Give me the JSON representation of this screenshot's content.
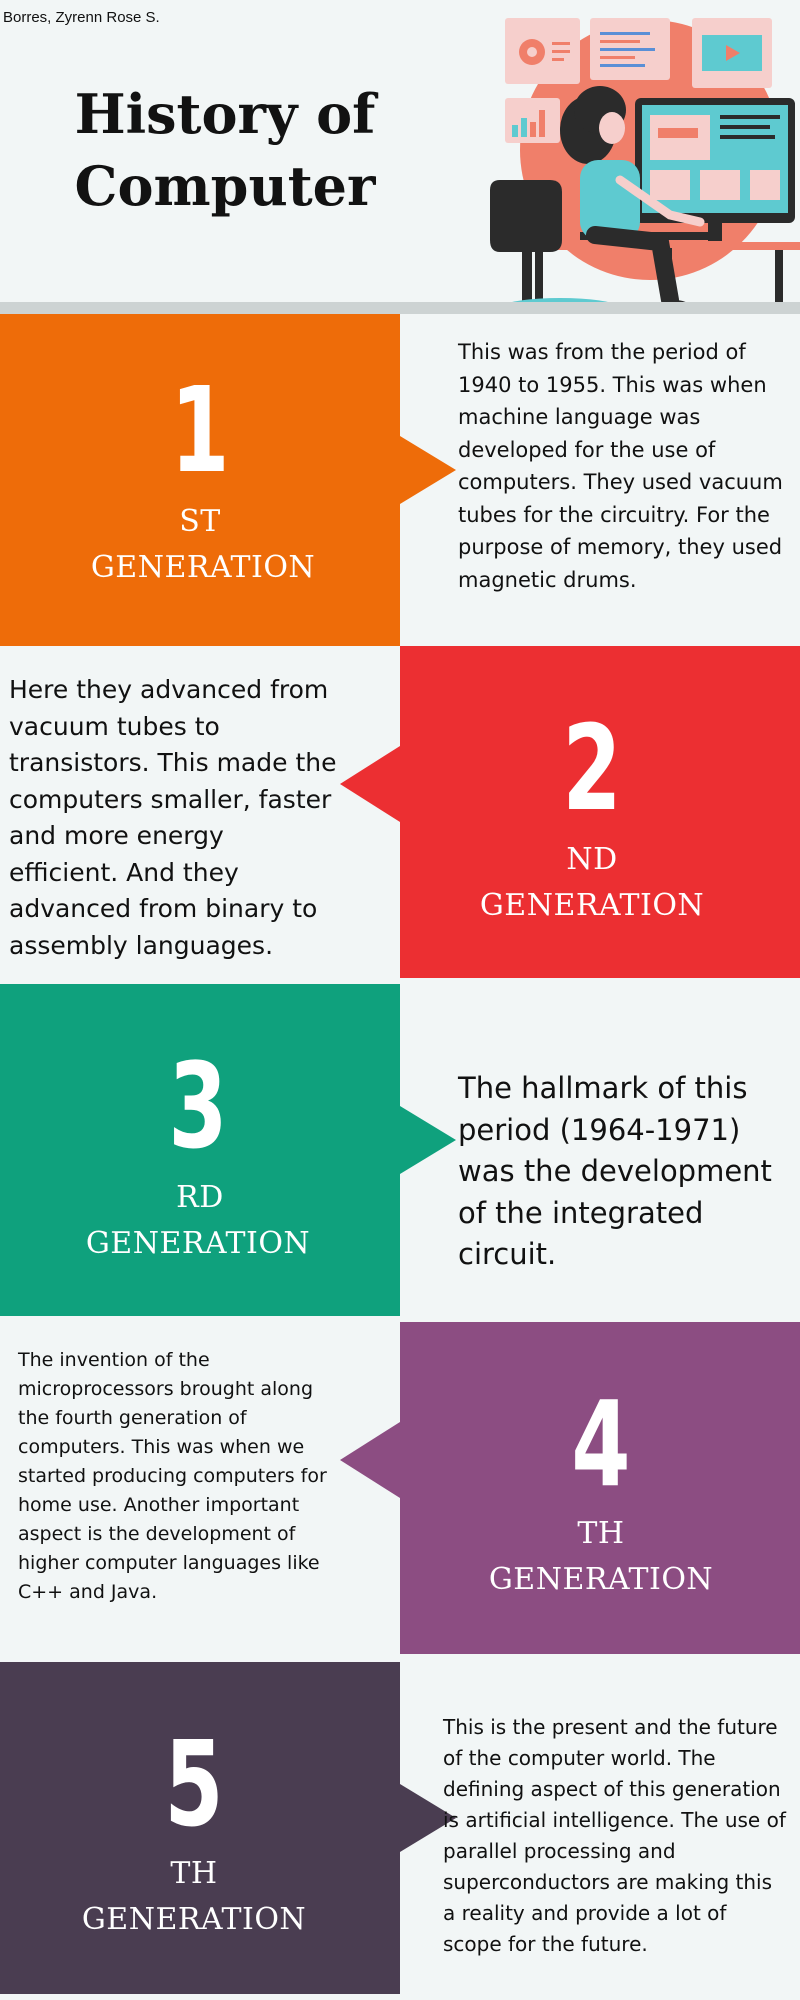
{
  "author": "Borres, Zyrenn Rose S.",
  "title": {
    "line1": "History of",
    "line2": "Computer"
  },
  "colors": {
    "background": "#f2f6f6",
    "gen1": "#ee6c09",
    "gen2": "#ec2f32",
    "gen3": "#0fa17d",
    "gen4": "#8c4d82",
    "gen5": "#4a3d51"
  },
  "generations": [
    {
      "number": "1",
      "suffix": "ST",
      "label": "GENERATION",
      "description": "This was from the period of 1940 to 1955. This was when machine language was developed for the use of computers. They used vacuum tubes for the circuitry. For the purpose of memory, they used magnetic drums."
    },
    {
      "number": "2",
      "suffix": "ND",
      "label": "GENERATION",
      "description": "Here they advanced from vacuum tubes to transistors. This made the computers smaller, faster and more energy efficient. And they advanced from binary to assembly languages."
    },
    {
      "number": "3",
      "suffix": "RD",
      "label": "GENERATION",
      "description": "The hallmark of this period (1964-1971) was the development of the integrated circuit."
    },
    {
      "number": "4",
      "suffix": "TH",
      "label": "GENERATION",
      "description": "The invention of the microprocessors brought along the fourth generation of computers. This was when we started producing computers for home use. Another important aspect is the development of higher computer languages like C++ and Java."
    },
    {
      "number": "5",
      "suffix": "TH",
      "label": "GENERATION",
      "description": "This is the present and the future of the computer world. The defining aspect of this generation is artificial intelligence. The use of parallel processing and superconductors are making this a reality and provide a lot of scope for the future."
    }
  ]
}
